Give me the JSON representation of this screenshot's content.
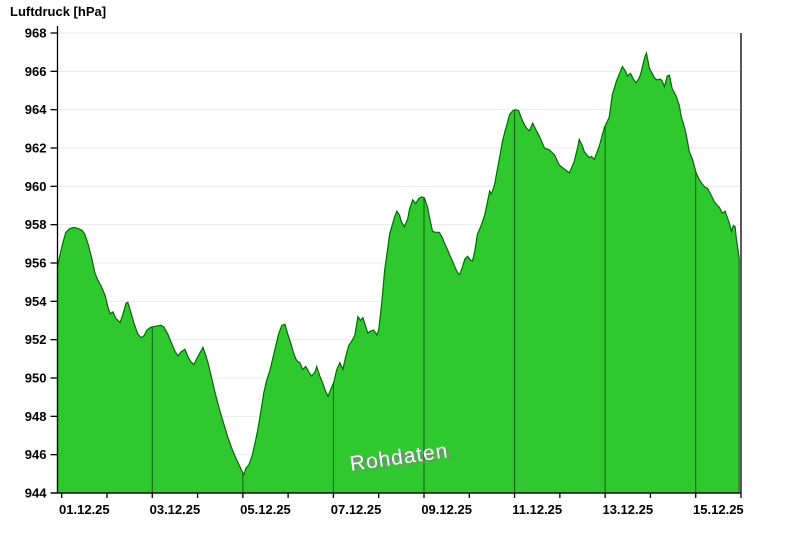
{
  "header": {
    "title": "Luftdruck [hPa]"
  },
  "watermark": {
    "label": "Rohdaten"
  },
  "colors": {
    "background": "#ffffff",
    "area_fill": "#2fc92f",
    "area_stroke": "#0b650b",
    "grid_h": "#e9e9e9",
    "grid_v": "#145c14",
    "axis": "#000000",
    "text": "#000000",
    "watermark_fill": "#ffffff",
    "watermark_shadow": "#848484"
  },
  "chart_data": {
    "type": "area",
    "title": "Luftdruck [hPa]",
    "ylabel": "Luftdruck [hPa]",
    "xlabel": "",
    "x_unit": "days since 01.12.25 00:00",
    "ylim": [
      944,
      968
    ],
    "y_ticks": [
      944,
      946,
      948,
      950,
      952,
      954,
      956,
      958,
      960,
      962,
      964,
      966,
      968
    ],
    "x_tick_days": [
      0,
      1,
      2,
      3,
      4,
      5,
      6,
      7,
      8,
      9,
      10,
      11,
      12,
      13,
      14,
      15
    ],
    "x_tick_labels": [
      "01.12.25",
      "03.12.25",
      "05.12.25",
      "07.12.25",
      "09.12.25",
      "11.12.25",
      "13.12.25",
      "15.12.25"
    ],
    "x_tick_label_days": [
      0,
      2,
      4,
      6,
      8,
      10,
      12,
      14
    ],
    "v_gridline_days": [
      2,
      4,
      6,
      8,
      10,
      12,
      14
    ],
    "grid": true,
    "legend": "none",
    "watermark": "Rohdaten",
    "series": [
      {
        "name": "Rohdaten",
        "points": [
          [
            -0.08,
            955.9
          ],
          [
            -0.04,
            956.4
          ],
          [
            0.03,
            957.1
          ],
          [
            0.09,
            957.6
          ],
          [
            0.18,
            957.8
          ],
          [
            0.27,
            957.85
          ],
          [
            0.36,
            957.8
          ],
          [
            0.45,
            957.7
          ],
          [
            0.51,
            957.5
          ],
          [
            0.58,
            957.0
          ],
          [
            0.67,
            956.2
          ],
          [
            0.73,
            955.5
          ],
          [
            0.8,
            955.1
          ],
          [
            0.87,
            954.8
          ],
          [
            0.96,
            954.3
          ],
          [
            1.02,
            953.7
          ],
          [
            1.07,
            953.35
          ],
          [
            1.13,
            953.45
          ],
          [
            1.2,
            953.1
          ],
          [
            1.29,
            952.9
          ],
          [
            1.35,
            953.3
          ],
          [
            1.42,
            953.9
          ],
          [
            1.46,
            953.95
          ],
          [
            1.53,
            953.4
          ],
          [
            1.59,
            952.9
          ],
          [
            1.68,
            952.3
          ],
          [
            1.75,
            952.1
          ],
          [
            1.82,
            952.2
          ],
          [
            1.88,
            952.5
          ],
          [
            1.97,
            952.65
          ],
          [
            2.08,
            952.7
          ],
          [
            2.19,
            952.75
          ],
          [
            2.26,
            952.65
          ],
          [
            2.34,
            952.3
          ],
          [
            2.43,
            951.8
          ],
          [
            2.5,
            951.4
          ],
          [
            2.57,
            951.15
          ],
          [
            2.63,
            951.35
          ],
          [
            2.72,
            951.5
          ],
          [
            2.79,
            951.1
          ],
          [
            2.85,
            950.85
          ],
          [
            2.92,
            950.7
          ],
          [
            2.98,
            951.0
          ],
          [
            3.05,
            951.3
          ],
          [
            3.12,
            951.6
          ],
          [
            3.18,
            951.2
          ],
          [
            3.23,
            950.8
          ],
          [
            3.32,
            949.9
          ],
          [
            3.4,
            949.1
          ],
          [
            3.49,
            948.3
          ],
          [
            3.58,
            947.6
          ],
          [
            3.67,
            946.9
          ],
          [
            3.76,
            946.3
          ],
          [
            3.85,
            945.8
          ],
          [
            3.91,
            945.5
          ],
          [
            3.98,
            945.15
          ],
          [
            4.02,
            944.95
          ],
          [
            4.07,
            945.3
          ],
          [
            4.13,
            945.45
          ],
          [
            4.2,
            945.9
          ],
          [
            4.26,
            946.5
          ],
          [
            4.33,
            947.3
          ],
          [
            4.4,
            948.3
          ],
          [
            4.46,
            949.2
          ],
          [
            4.53,
            949.9
          ],
          [
            4.6,
            950.4
          ],
          [
            4.66,
            951.0
          ],
          [
            4.73,
            951.7
          ],
          [
            4.79,
            952.3
          ],
          [
            4.86,
            952.75
          ],
          [
            4.93,
            952.8
          ],
          [
            4.99,
            952.3
          ],
          [
            5.06,
            951.8
          ],
          [
            5.12,
            951.3
          ],
          [
            5.19,
            950.9
          ],
          [
            5.26,
            950.8
          ],
          [
            5.32,
            950.45
          ],
          [
            5.39,
            950.6
          ],
          [
            5.46,
            950.3
          ],
          [
            5.52,
            950.1
          ],
          [
            5.59,
            950.3
          ],
          [
            5.63,
            950.6
          ],
          [
            5.7,
            950.1
          ],
          [
            5.76,
            949.75
          ],
          [
            5.83,
            949.3
          ],
          [
            5.88,
            949.05
          ],
          [
            5.94,
            949.4
          ],
          [
            6.01,
            949.8
          ],
          [
            6.07,
            950.4
          ],
          [
            6.14,
            950.8
          ],
          [
            6.21,
            950.45
          ],
          [
            6.27,
            951.1
          ],
          [
            6.34,
            951.7
          ],
          [
            6.4,
            951.9
          ],
          [
            6.47,
            952.2
          ],
          [
            6.54,
            953.2
          ],
          [
            6.6,
            953.0
          ],
          [
            6.65,
            953.15
          ],
          [
            6.71,
            952.7
          ],
          [
            6.76,
            952.35
          ],
          [
            6.82,
            952.45
          ],
          [
            6.89,
            952.5
          ],
          [
            6.96,
            952.25
          ],
          [
            7.0,
            952.5
          ],
          [
            7.07,
            954.0
          ],
          [
            7.13,
            955.6
          ],
          [
            7.2,
            956.8
          ],
          [
            7.24,
            957.5
          ],
          [
            7.29,
            957.9
          ],
          [
            7.35,
            958.4
          ],
          [
            7.4,
            958.7
          ],
          [
            7.46,
            958.5
          ],
          [
            7.51,
            958.1
          ],
          [
            7.57,
            957.9
          ],
          [
            7.64,
            958.3
          ],
          [
            7.68,
            958.8
          ],
          [
            7.75,
            959.3
          ],
          [
            7.82,
            959.1
          ],
          [
            7.88,
            959.35
          ],
          [
            7.95,
            959.45
          ],
          [
            8.01,
            959.4
          ],
          [
            8.08,
            958.9
          ],
          [
            8.12,
            958.4
          ],
          [
            8.19,
            957.65
          ],
          [
            8.26,
            957.6
          ],
          [
            8.34,
            957.6
          ],
          [
            8.41,
            957.3
          ],
          [
            8.45,
            957.05
          ],
          [
            8.52,
            956.7
          ],
          [
            8.57,
            956.4
          ],
          [
            8.63,
            956.1
          ],
          [
            8.68,
            955.8
          ],
          [
            8.74,
            955.5
          ],
          [
            8.79,
            955.4
          ],
          [
            8.85,
            955.8
          ],
          [
            8.9,
            956.2
          ],
          [
            8.96,
            956.35
          ],
          [
            9.03,
            956.15
          ],
          [
            9.07,
            956.1
          ],
          [
            9.12,
            956.6
          ],
          [
            9.18,
            957.5
          ],
          [
            9.27,
            958.0
          ],
          [
            9.34,
            958.5
          ],
          [
            9.38,
            958.95
          ],
          [
            9.45,
            959.75
          ],
          [
            9.49,
            959.6
          ],
          [
            9.56,
            960.1
          ],
          [
            9.62,
            960.9
          ],
          [
            9.67,
            961.5
          ],
          [
            9.73,
            962.3
          ],
          [
            9.78,
            962.8
          ],
          [
            9.84,
            963.3
          ],
          [
            9.89,
            963.75
          ],
          [
            9.96,
            963.95
          ],
          [
            10.02,
            964.0
          ],
          [
            10.09,
            963.95
          ],
          [
            10.18,
            963.4
          ],
          [
            10.26,
            963.05
          ],
          [
            10.33,
            962.9
          ],
          [
            10.4,
            963.3
          ],
          [
            10.46,
            963.0
          ],
          [
            10.55,
            962.6
          ],
          [
            10.66,
            962.0
          ],
          [
            10.77,
            961.9
          ],
          [
            10.88,
            961.65
          ],
          [
            10.99,
            961.1
          ],
          [
            11.1,
            960.9
          ],
          [
            11.21,
            960.7
          ],
          [
            11.32,
            961.3
          ],
          [
            11.39,
            962.0
          ],
          [
            11.43,
            962.45
          ],
          [
            11.5,
            962.1
          ],
          [
            11.54,
            961.8
          ],
          [
            11.65,
            961.5
          ],
          [
            11.7,
            961.55
          ],
          [
            11.76,
            961.4
          ],
          [
            11.87,
            962.1
          ],
          [
            11.98,
            963.05
          ],
          [
            12.09,
            963.6
          ],
          [
            12.16,
            964.8
          ],
          [
            12.25,
            965.5
          ],
          [
            12.32,
            965.9
          ],
          [
            12.38,
            966.25
          ],
          [
            12.45,
            966.0
          ],
          [
            12.49,
            965.75
          ],
          [
            12.56,
            965.9
          ],
          [
            12.62,
            965.6
          ],
          [
            12.69,
            965.4
          ],
          [
            12.76,
            965.7
          ],
          [
            12.8,
            966.0
          ],
          [
            12.87,
            966.7
          ],
          [
            12.91,
            966.95
          ],
          [
            12.98,
            966.15
          ],
          [
            13.04,
            965.9
          ],
          [
            13.09,
            965.65
          ],
          [
            13.15,
            965.55
          ],
          [
            13.22,
            965.6
          ],
          [
            13.26,
            965.5
          ],
          [
            13.31,
            965.2
          ],
          [
            13.37,
            965.75
          ],
          [
            13.42,
            965.8
          ],
          [
            13.48,
            965.1
          ],
          [
            13.57,
            964.7
          ],
          [
            13.64,
            964.2
          ],
          [
            13.68,
            963.65
          ],
          [
            13.75,
            963.1
          ],
          [
            13.79,
            962.7
          ],
          [
            13.86,
            961.8
          ],
          [
            13.93,
            961.4
          ],
          [
            14.01,
            960.7
          ],
          [
            14.08,
            960.35
          ],
          [
            14.15,
            960.1
          ],
          [
            14.21,
            959.95
          ],
          [
            14.26,
            959.9
          ],
          [
            14.34,
            959.55
          ],
          [
            14.41,
            959.2
          ],
          [
            14.48,
            959.0
          ],
          [
            14.52,
            958.9
          ],
          [
            14.59,
            958.6
          ],
          [
            14.65,
            958.7
          ],
          [
            14.74,
            958.1
          ],
          [
            14.79,
            957.65
          ],
          [
            14.83,
            957.95
          ],
          [
            14.87,
            957.9
          ],
          [
            14.9,
            957.2
          ],
          [
            14.94,
            956.6
          ],
          [
            14.96,
            956.2
          ]
        ]
      }
    ]
  }
}
